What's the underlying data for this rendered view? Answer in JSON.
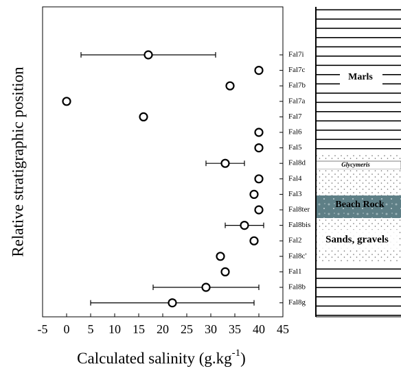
{
  "chart_data": {
    "type": "errorbar-h",
    "x_label": {
      "text": "Calculated salinity (g.kg",
      "superscript": "-1",
      "suffix": ")"
    },
    "y_label": "Relative stratigraphic position",
    "categories": [
      "Fal7i",
      "Fal7c",
      "Fal7b",
      "Fal7a",
      "Fal7",
      "Fal6",
      "Fal5",
      "Fal8d",
      "Fal4",
      "Fal3",
      "Fal8ter",
      "Fal8bis",
      "Fal2",
      "Fal8c'",
      "Fal1",
      "Fal8b",
      "Fal8g"
    ],
    "values": [
      17,
      40,
      34,
      0,
      16,
      40,
      40,
      33,
      40,
      39,
      40,
      37,
      39,
      32,
      33,
      29,
      22
    ],
    "errors": [
      14,
      null,
      null,
      null,
      null,
      null,
      null,
      4,
      null,
      null,
      null,
      4,
      null,
      null,
      null,
      11,
      17
    ],
    "color": "#000000",
    "xlim": [
      -5,
      45
    ],
    "xticks": [
      -5,
      0,
      5,
      10,
      15,
      20,
      25,
      30,
      35,
      40,
      45
    ],
    "lithology": [
      "Marls",
      "Glycymeris",
      "Beach Rock",
      "Sands, gravels"
    ]
  }
}
